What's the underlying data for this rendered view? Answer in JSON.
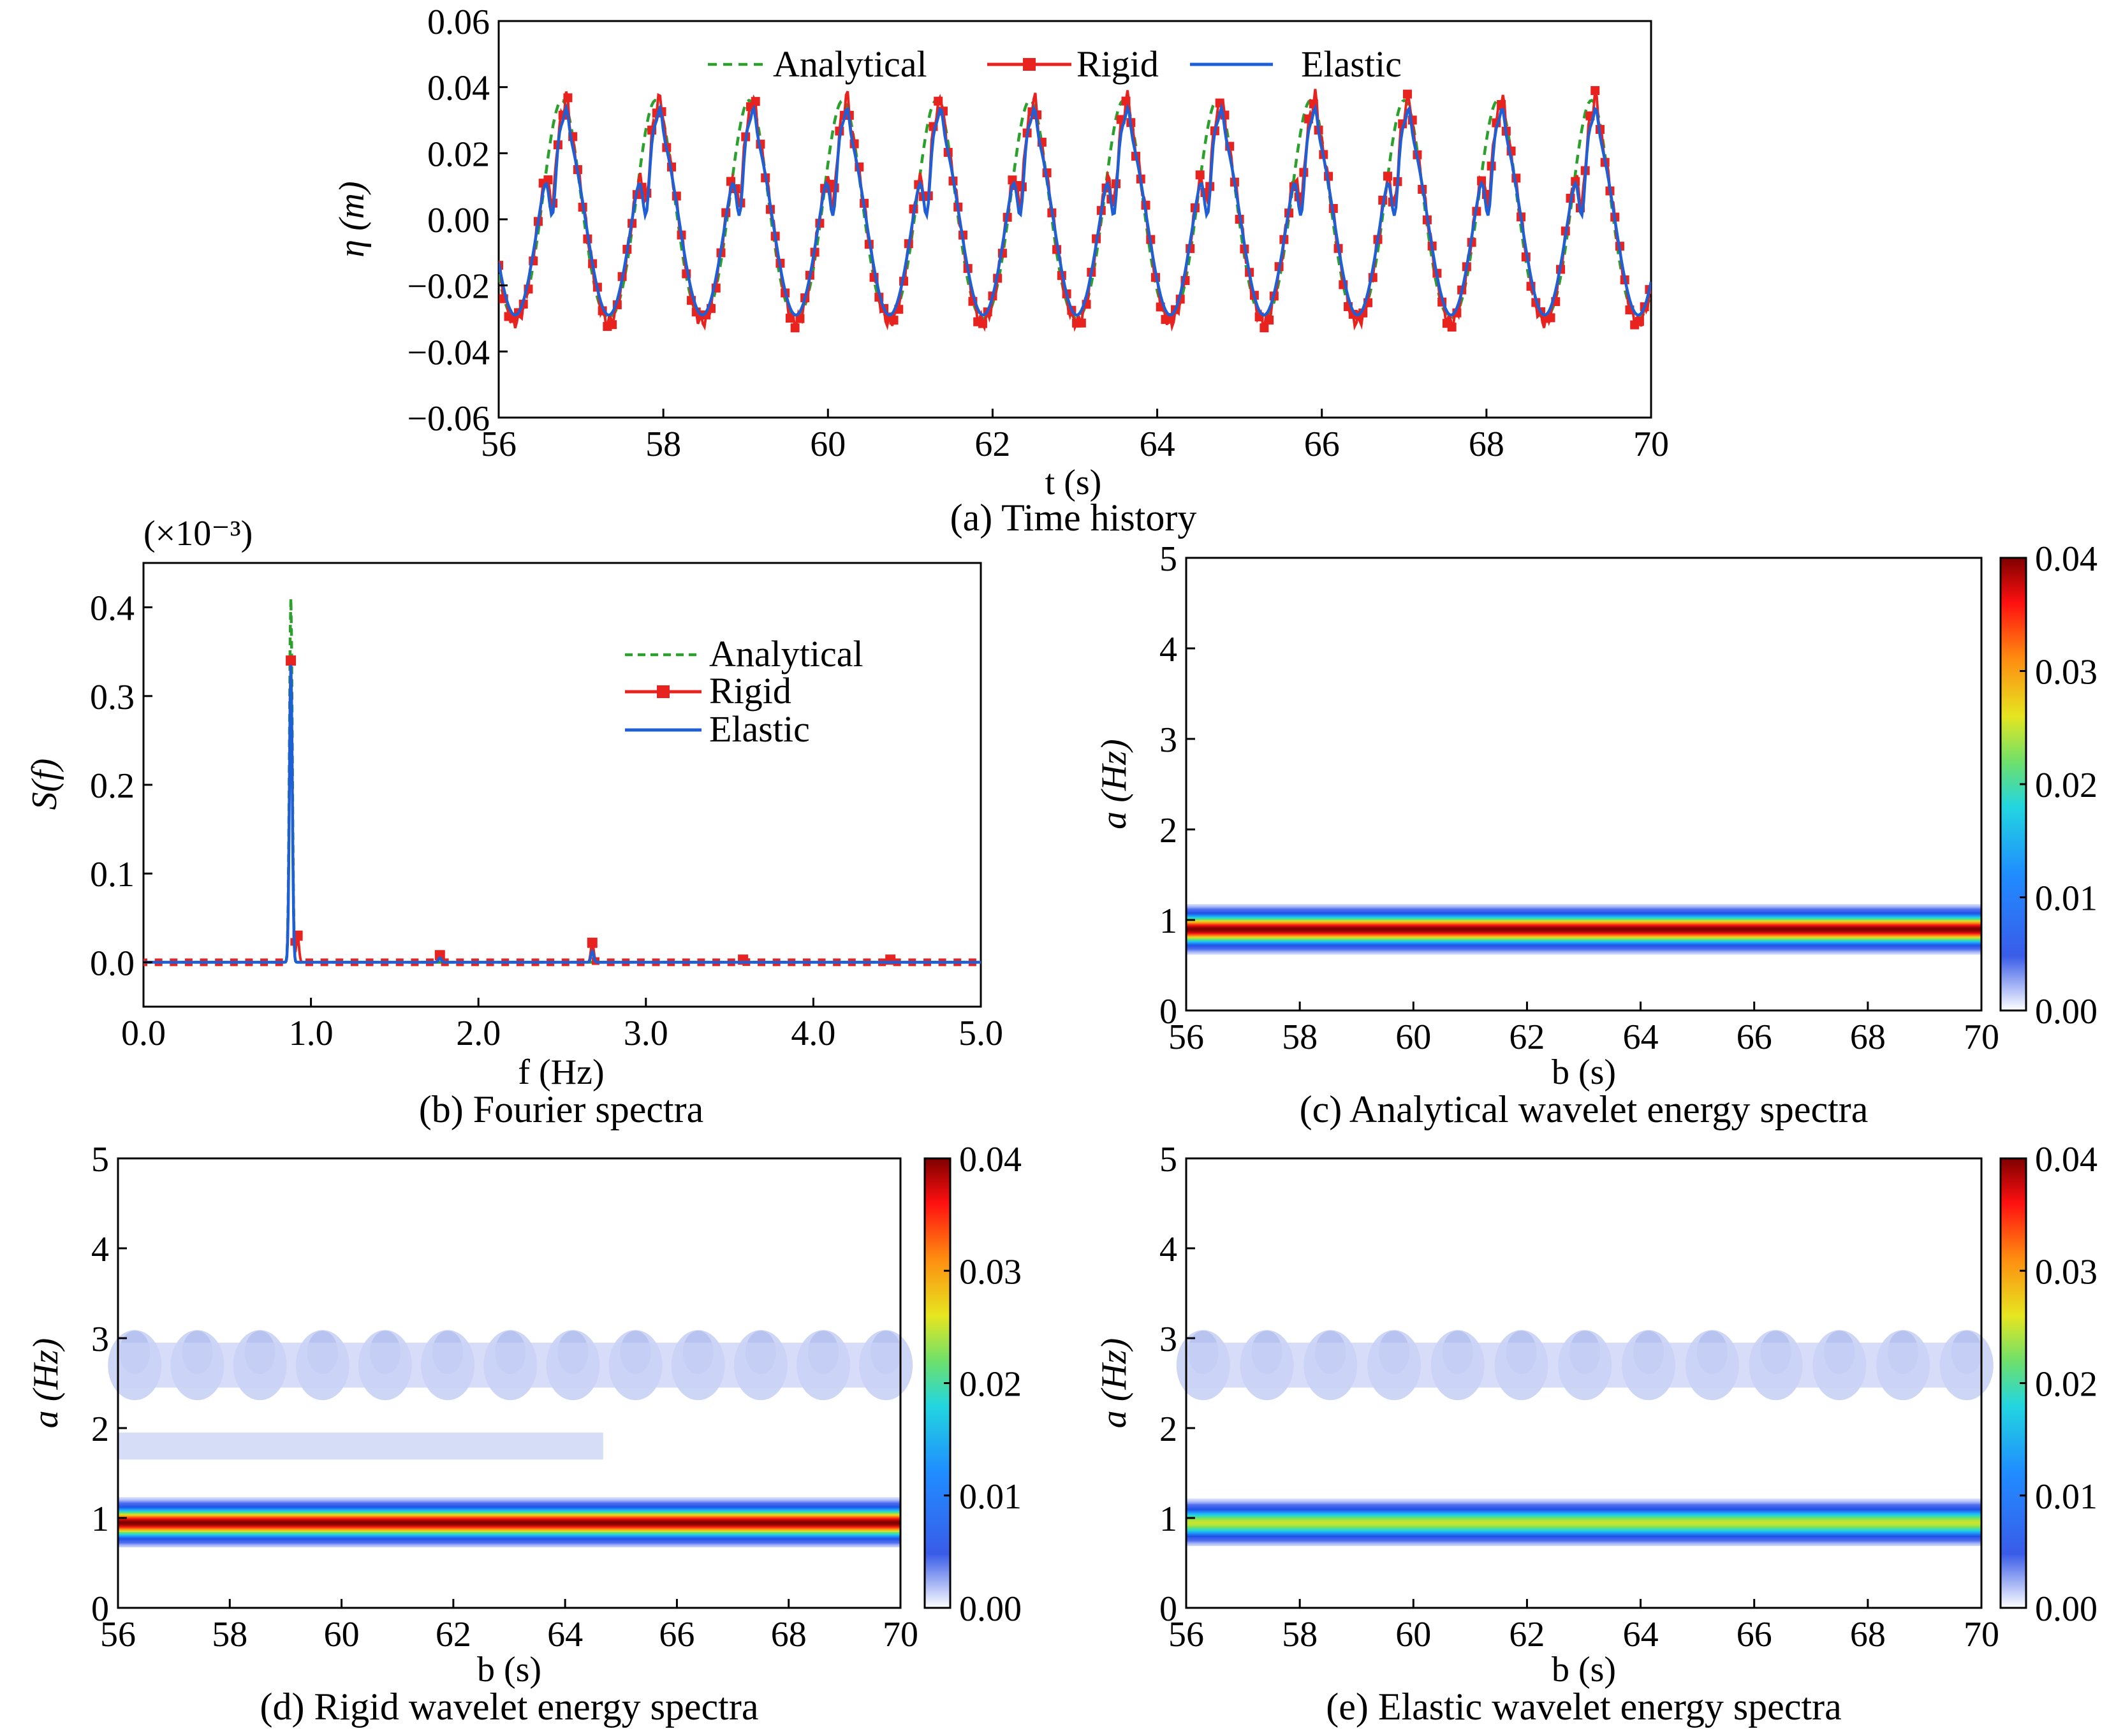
{
  "chart_data": [
    {
      "panel": "a",
      "type": "line",
      "caption": "(a) Time history",
      "xlabel": "t (s)",
      "ylabel": "η (m)",
      "xlim": [
        56,
        70
      ],
      "ylim": [
        -0.06,
        0.06
      ],
      "xticks": [
        56,
        58,
        60,
        62,
        64,
        66,
        68,
        70
      ],
      "xtick_labels": [
        "56",
        "58",
        "60",
        "62",
        "64",
        "66",
        "68",
        "70"
      ],
      "yticks": [
        -0.06,
        -0.04,
        -0.02,
        0.0,
        0.02,
        0.04,
        0.06
      ],
      "ytick_labels": [
        "−0.06",
        "−0.04",
        "−0.02",
        "0.00",
        "0.02",
        "0.04",
        "0.06"
      ],
      "legend_placement": "top-center",
      "period_s": 1.137,
      "series": [
        {
          "name": "Analytical",
          "style": "dashed",
          "color": "#2ca02c",
          "peak": 0.033,
          "trough": -0.033
        },
        {
          "name": "Rigid",
          "style": "line-square",
          "color": "#e8231f",
          "peak": 0.034,
          "trough": -0.033
        },
        {
          "name": "Elastic",
          "style": "solid",
          "color": "#1f5fd6",
          "peak": 0.031,
          "trough": -0.028
        }
      ]
    },
    {
      "panel": "b",
      "type": "line",
      "caption": "(b) Fourier spectra",
      "xlabel": "f (Hz)",
      "ylabel": "S(f)",
      "multiplier": "(×10⁻³)",
      "xlim": [
        0,
        5
      ],
      "ylim": [
        -0.05,
        0.45
      ],
      "xticks": [
        0,
        1,
        2,
        3,
        4,
        5
      ],
      "xtick_labels": [
        "0.0",
        "1.0",
        "2.0",
        "3.0",
        "4.0",
        "5.0"
      ],
      "yticks": [
        0.0,
        0.1,
        0.2,
        0.3,
        0.4
      ],
      "ytick_labels": [
        "0.0",
        "0.1",
        "0.2",
        "0.3",
        "0.4"
      ],
      "legend_placement": "upper-right",
      "series": [
        {
          "name": "Analytical",
          "color": "#2ca02c",
          "peaks": [
            [
              0.88,
              0.41
            ]
          ]
        },
        {
          "name": "Rigid",
          "color": "#e8231f",
          "peaks": [
            [
              0.88,
              0.34
            ],
            [
              0.92,
              0.03
            ],
            [
              1.77,
              0.008
            ],
            [
              2.68,
              0.022
            ],
            [
              3.58,
              0.003
            ],
            [
              4.46,
              0.003
            ]
          ]
        },
        {
          "name": "Elastic",
          "color": "#1f5fd6",
          "peaks": [
            [
              0.88,
              0.335
            ],
            [
              1.77,
              0.005
            ],
            [
              2.68,
              0.012
            ]
          ]
        }
      ]
    },
    {
      "panel": "c",
      "type": "heatmap",
      "caption": "(c) Analytical wavelet energy spectra",
      "xlabel": "b (s)",
      "ylabel": "a (Hz)",
      "xlim": [
        56,
        70
      ],
      "ylim": [
        0,
        5
      ],
      "xtick_labels": [
        "56",
        "58",
        "60",
        "62",
        "64",
        "66",
        "68",
        "70"
      ],
      "ytick_labels": [
        "0",
        "1",
        "2",
        "3",
        "4",
        "5"
      ],
      "colorbar": {
        "range": [
          0.0,
          0.04
        ],
        "tick_labels": [
          "0.00",
          "0.01",
          "0.02",
          "0.03",
          "0.04"
        ]
      },
      "band_center_hz": 0.9,
      "peak_energy": 0.04,
      "secondary_band": null
    },
    {
      "panel": "d",
      "type": "heatmap",
      "caption": "(d) Rigid wavelet energy spectra",
      "xlabel": "b (s)",
      "ylabel": "a (Hz)",
      "xlim": [
        56,
        70
      ],
      "ylim": [
        0,
        5
      ],
      "xtick_labels": [
        "56",
        "58",
        "60",
        "62",
        "64",
        "66",
        "68",
        "70"
      ],
      "ytick_labels": [
        "0",
        "1",
        "2",
        "3",
        "4",
        "5"
      ],
      "colorbar": {
        "range": [
          0.0,
          0.04
        ],
        "tick_labels": [
          "0.00",
          "0.01",
          "0.02",
          "0.03",
          "0.04"
        ]
      },
      "band_center_hz": 0.95,
      "peak_energy": 0.04,
      "secondary_band": {
        "center_hz": 2.7,
        "energy": 0.003,
        "extra_band_hz": 1.8
      }
    },
    {
      "panel": "e",
      "type": "heatmap",
      "caption": "(e) Elastic wavelet energy spectra",
      "xlabel": "b (s)",
      "ylabel": "a (Hz)",
      "xlim": [
        56,
        70
      ],
      "ylim": [
        0,
        5
      ],
      "xtick_labels": [
        "56",
        "58",
        "60",
        "62",
        "64",
        "66",
        "68",
        "70"
      ],
      "ytick_labels": [
        "0",
        "1",
        "2",
        "3",
        "4",
        "5"
      ],
      "colorbar": {
        "range": [
          0.0,
          0.04
        ],
        "tick_labels": [
          "0.00",
          "0.01",
          "0.02",
          "0.03",
          "0.04"
        ]
      },
      "band_center_hz": 0.95,
      "peak_energy": 0.025,
      "secondary_band": {
        "center_hz": 2.7,
        "energy": 0.002,
        "extra_band_hz": null
      }
    }
  ]
}
